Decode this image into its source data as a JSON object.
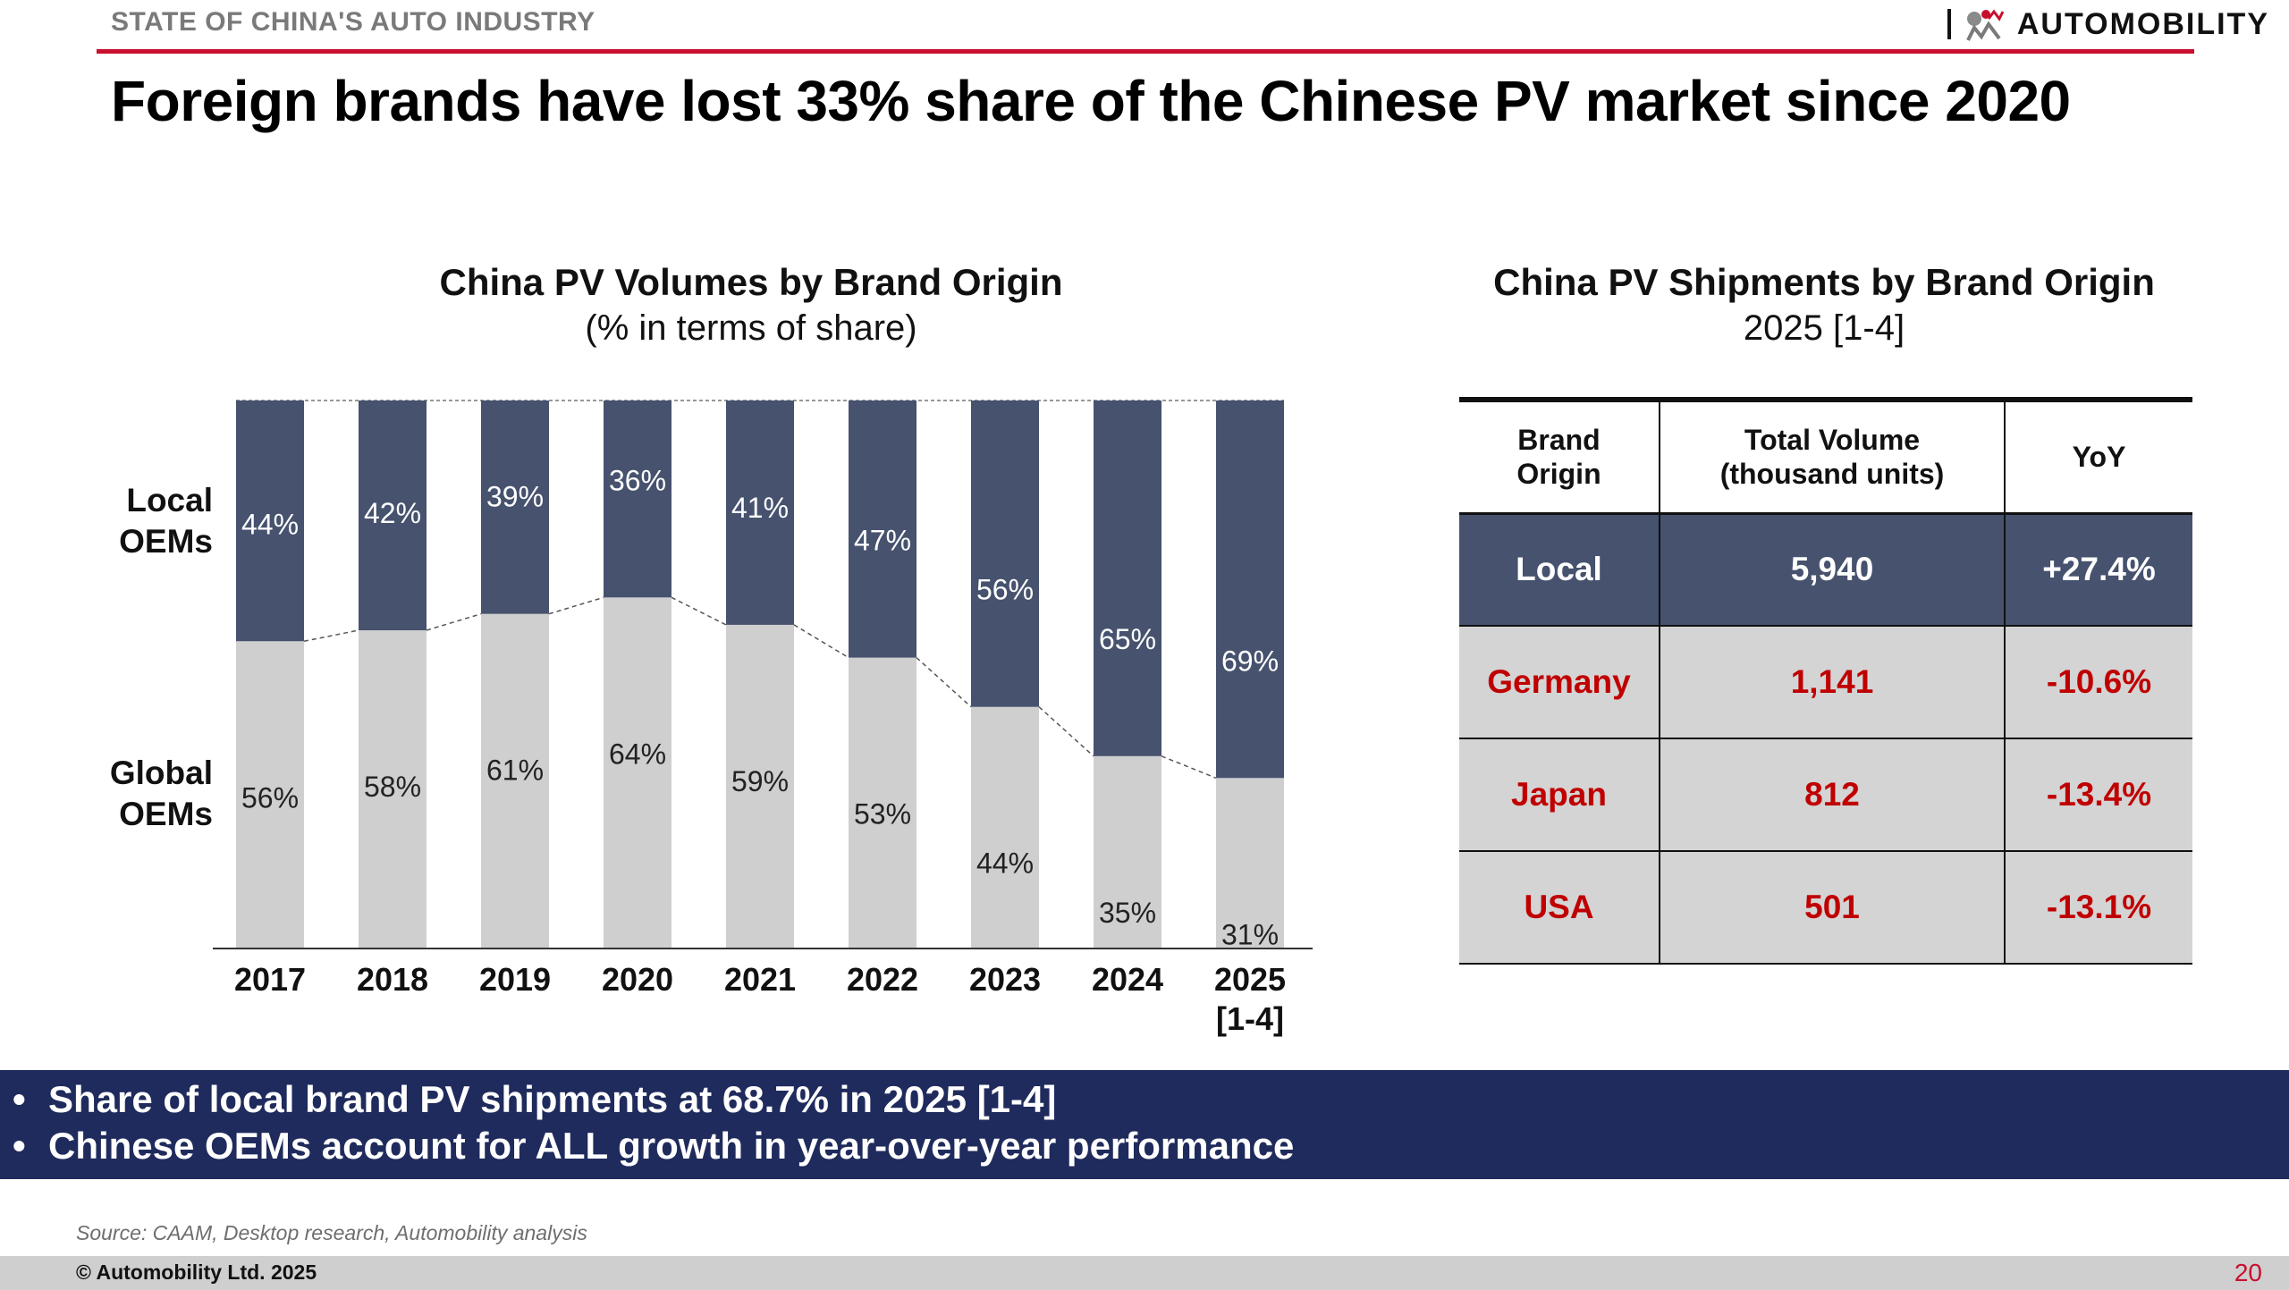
{
  "header": {
    "section_label": "STATE OF CHINA'S AUTO INDUSTRY",
    "brand_name": "AUTOMOBILITY",
    "accent_color": "#c8102e"
  },
  "title": "Foreign brands have lost 33% share of the Chinese PV market since 2020",
  "chart_data": {
    "type": "bar",
    "stacked": true,
    "title": "China PV Volumes by Brand Origin",
    "subtitle": "(% in terms of share)",
    "categories": [
      "2017",
      "2018",
      "2019",
      "2020",
      "2021",
      "2022",
      "2023",
      "2024",
      "2025\n[1-4]"
    ],
    "series": [
      {
        "name": "Global OEMs",
        "values": [
          56,
          58,
          61,
          64,
          59,
          53,
          44,
          35,
          31
        ],
        "labels": [
          "56%",
          "58%",
          "61%",
          "64%",
          "59%",
          "53%",
          "44%",
          "35%",
          "31%"
        ],
        "color": "#cfcfcf"
      },
      {
        "name": "Local OEMs",
        "values": [
          44,
          42,
          39,
          36,
          41,
          47,
          56,
          65,
          69
        ],
        "labels": [
          "44%",
          "42%",
          "39%",
          "36%",
          "41%",
          "47%",
          "56%",
          "65%",
          "69%"
        ],
        "color": "#46526e"
      }
    ],
    "row_labels": {
      "local": "Local\nOEMs",
      "global": "Global\nOEMs"
    },
    "ylim": [
      0,
      100
    ],
    "grid": false,
    "connector_lines": "dashed"
  },
  "table": {
    "title": "China PV Shipments by Brand Origin",
    "subtitle": "2025 [1-4]",
    "headers": [
      "Brand\nOrigin",
      "Total Volume\n(thousand units)",
      "YoY"
    ],
    "rows": [
      {
        "origin": "Local",
        "volume": "5,940",
        "yoy": "+27.4%"
      },
      {
        "origin": "Germany",
        "volume": "1,141",
        "yoy": "-10.6%"
      },
      {
        "origin": "Japan",
        "volume": "812",
        "yoy": "-13.4%"
      },
      {
        "origin": "USA",
        "volume": "501",
        "yoy": "-13.1%"
      }
    ]
  },
  "banner": {
    "bullets": [
      "Share of local brand PV shipments at 68.7% in 2025 [1-4]",
      "Chinese OEMs account for ALL growth in year-over-year performance"
    ],
    "color": "#1f2b5c"
  },
  "footer": {
    "source": "Source: CAAM, Desktop research, Automobility analysis",
    "copyright": "Automobility Ltd. 2025",
    "page_number": "20"
  }
}
